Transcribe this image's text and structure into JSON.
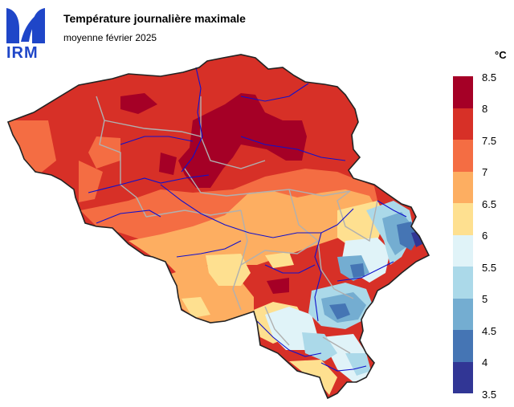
{
  "logo": {
    "text": "IRM",
    "color": "#1f46c8"
  },
  "title": "Température journalière maximale",
  "subtitle": "moyenne février 2025",
  "legend": {
    "unit": "°C",
    "ticks": [
      "8.5",
      "8",
      "7.5",
      "7",
      "6.5",
      "6",
      "5.5",
      "5",
      "4.5",
      "4",
      "3.5"
    ],
    "colors": [
      "#a50026",
      "#d73027",
      "#f46d43",
      "#fdae61",
      "#fee090",
      "#e0f3f8",
      "#abd9e9",
      "#74add1",
      "#4575b4",
      "#313695"
    ]
  },
  "map": {
    "region": "Belgique",
    "border_color": "#222222",
    "province_border_color": "#b0b0b0",
    "river_color": "#1010cc"
  }
}
